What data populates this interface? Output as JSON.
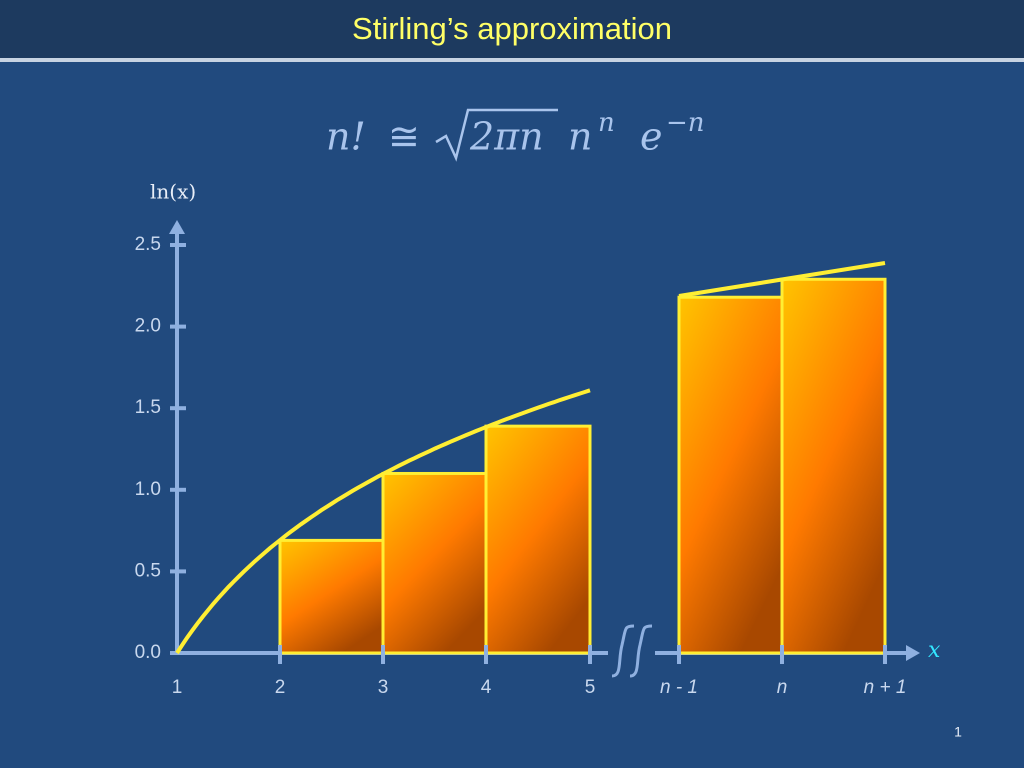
{
  "chart_data": {
    "type": "bar",
    "title": "Stirling’s approximation",
    "formula": {
      "lhs": "n!",
      "op": "≅",
      "root": "2πn",
      "base": "n",
      "exp": "n",
      "e": "e",
      "eexp": "−n"
    },
    "y_label": "ln(x)",
    "x_label": "x",
    "xticks": [
      1,
      2,
      3,
      4,
      5,
      "n - 1",
      "n",
      "n + 1"
    ],
    "values": [
      0.69,
      1.1,
      1.39,
      2.18,
      2.29
    ],
    "ylim": [
      0,
      2.5
    ],
    "yticks": [
      {
        "value": 0,
        "label": "0.0"
      },
      0.5,
      {
        "value": 1,
        "label": "1.0"
      },
      1.5,
      {
        "value": 2,
        "label": "2.0"
      },
      2.5
    ],
    "color": "#ffee33",
    "page_number": "1"
  }
}
